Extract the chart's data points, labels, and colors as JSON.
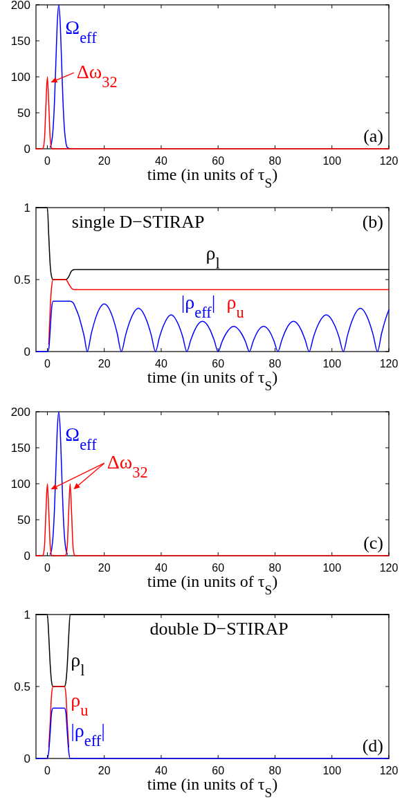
{
  "chart_data": [
    {
      "type": "line",
      "xlabel": "time (in units of τ$_{S}$)",
      "xlim": [
        -4,
        120
      ],
      "xticks": [
        0,
        20,
        40,
        60,
        80,
        100,
        120
      ],
      "ylim": [
        0,
        200
      ],
      "yticks": [
        0,
        50,
        100,
        150,
        200
      ],
      "annotations": [
        "(a)"
      ],
      "series": [
        {
          "name": "Ω$_{eff}$",
          "color": "#0000ff",
          "x": [
            1,
            1.5,
            2,
            2.5,
            3,
            3.5,
            4,
            4.5,
            5,
            5.5,
            6,
            6.5,
            7,
            8
          ],
          "values": [
            2,
            9,
            27,
            65,
            121,
            176,
            200,
            176,
            121,
            65,
            27,
            9,
            2,
            0
          ]
        },
        {
          "name": "Δω$_{32}$",
          "color": "#ff0000",
          "x": [
            -4,
            -2,
            -1.5,
            -1,
            -0.5,
            0,
            0.5,
            1,
            1.5,
            2,
            120
          ],
          "values": [
            0,
            0,
            1,
            14,
            61,
            100,
            61,
            14,
            1,
            0,
            0
          ]
        }
      ]
    },
    {
      "type": "line",
      "xlabel": "time (in units of τ$_{S}$)",
      "xlim": [
        -4,
        120
      ],
      "xticks": [
        0,
        20,
        40,
        60,
        80,
        100,
        120
      ],
      "ylim": [
        0,
        1
      ],
      "yticks": [
        0,
        0.5,
        1
      ],
      "annotations": [
        "single D−STIRAP",
        "(b)"
      ],
      "series": [
        {
          "name": "ρ$_{l}$",
          "color": "#000000",
          "x": [
            -4,
            0,
            0.5,
            1,
            1.5,
            2,
            6.5,
            7.5,
            8.5,
            9.5,
            120
          ],
          "values": [
            1,
            1,
            0.8,
            0.6,
            0.52,
            0.5,
            0.5,
            0.52,
            0.56,
            0.57,
            0.57
          ]
        },
        {
          "name": "ρ$_{u}$",
          "color": "#ff0000",
          "x": [
            0.5,
            1,
            1.5,
            2,
            6.5,
            7.5,
            8.5,
            9.5,
            120
          ],
          "values": [
            0.05,
            0.3,
            0.45,
            0.5,
            0.5,
            0.47,
            0.44,
            0.43,
            0.43
          ]
        },
        {
          "name": "|ρ$_{eff}$|",
          "color": "#0000ff",
          "x": [
            -4,
            0,
            0.5,
            1,
            1.5,
            2,
            8,
            9,
            10,
            11,
            12,
            13,
            14,
            15.5,
            17,
            20,
            23,
            24.5,
            26,
            27.5,
            29,
            32,
            35,
            36.5,
            38,
            39.4,
            40.8,
            43.5,
            46.2,
            47.6,
            49,
            50.4,
            51.8,
            54.5,
            57.2,
            58.6,
            60,
            61.4,
            62.8,
            65.5,
            68.2,
            69.6,
            71,
            72.3,
            73.5,
            76,
            78.5,
            79.7,
            81,
            82.4,
            83.8,
            86.5,
            89.2,
            90.6,
            92,
            93.5,
            95,
            98,
            101,
            102.5,
            104,
            105.5,
            107,
            110,
            113,
            114.5,
            116,
            117.5,
            119,
            120
          ],
          "values": [
            0,
            0,
            0.02,
            0.15,
            0.3,
            0.35,
            0.35,
            0.34,
            0.3,
            0.25,
            0.18,
            0.1,
            0,
            0.13,
            0.235,
            0.33,
            0.235,
            0.13,
            0,
            0.115,
            0.21,
            0.3,
            0.21,
            0.115,
            0,
            0.1,
            0.18,
            0.255,
            0.18,
            0.1,
            0,
            0.08,
            0.15,
            0.21,
            0.15,
            0.08,
            0,
            0.07,
            0.125,
            0.175,
            0.125,
            0.07,
            0,
            0.07,
            0.125,
            0.175,
            0.125,
            0.07,
            0,
            0.08,
            0.15,
            0.21,
            0.15,
            0.08,
            0,
            0.1,
            0.18,
            0.255,
            0.18,
            0.1,
            0,
            0.115,
            0.21,
            0.3,
            0.21,
            0.115,
            0,
            0.13,
            0.235,
            0.29
          ]
        }
      ]
    },
    {
      "type": "line",
      "xlabel": "time (in units of τ$_{S}$)",
      "xlim": [
        -4,
        120
      ],
      "xticks": [
        0,
        20,
        40,
        60,
        80,
        100,
        120
      ],
      "ylim": [
        0,
        200
      ],
      "yticks": [
        0,
        50,
        100,
        150,
        200
      ],
      "annotations": [
        "(c)"
      ],
      "series": [
        {
          "name": "Ω$_{eff}$",
          "color": "#0000ff",
          "x": [
            1,
            1.5,
            2,
            2.5,
            3,
            3.5,
            4,
            4.5,
            5,
            5.5,
            6,
            6.5,
            7
          ],
          "values": [
            2,
            9,
            27,
            65,
            121,
            176,
            200,
            176,
            121,
            65,
            27,
            9,
            2
          ]
        },
        {
          "name": "Δω$_{32}$",
          "color": "#ff0000",
          "x": [
            -4,
            -2,
            -1.5,
            -1,
            -0.5,
            0,
            0.5,
            1,
            1.5,
            2,
            6,
            6.5,
            7,
            7.5,
            8,
            8.5,
            9,
            9.5,
            10,
            120
          ],
          "values": [
            0,
            0,
            1,
            14,
            61,
            100,
            61,
            14,
            1,
            0,
            0,
            1,
            14,
            61,
            100,
            61,
            14,
            1,
            0,
            0
          ]
        }
      ]
    },
    {
      "type": "line",
      "xlabel": "time (in units of τ$_{S}$)",
      "xlim": [
        -4,
        120
      ],
      "xticks": [
        0,
        20,
        40,
        60,
        80,
        100,
        120
      ],
      "ylim": [
        0,
        1
      ],
      "yticks": [
        0,
        0.5,
        1
      ],
      "annotations": [
        "double D−STIRAP",
        "(d)"
      ],
      "series": [
        {
          "name": "ρ$_{l}$",
          "color": "#000000",
          "x": [
            -4,
            0,
            0.5,
            1,
            1.5,
            2,
            6,
            6.5,
            7,
            7.5,
            8,
            120
          ],
          "values": [
            1,
            1,
            0.85,
            0.65,
            0.53,
            0.5,
            0.5,
            0.53,
            0.65,
            0.85,
            1,
            1
          ]
        },
        {
          "name": "ρ$_{u}$",
          "color": "#ff0000",
          "x": [
            0.5,
            1,
            1.5,
            2,
            6,
            6.5,
            7,
            7.5
          ],
          "values": [
            0.08,
            0.25,
            0.45,
            0.5,
            0.5,
            0.45,
            0.25,
            0.08
          ]
        },
        {
          "name": "|ρ$_{eff}$|",
          "color": "#0000ff",
          "x": [
            -4,
            0,
            0.5,
            1,
            1.5,
            2,
            6,
            6.5,
            7,
            7.5,
            8,
            120
          ],
          "values": [
            0,
            0,
            0.05,
            0.18,
            0.32,
            0.35,
            0.35,
            0.32,
            0.18,
            0.05,
            0,
            0
          ]
        }
      ]
    }
  ]
}
